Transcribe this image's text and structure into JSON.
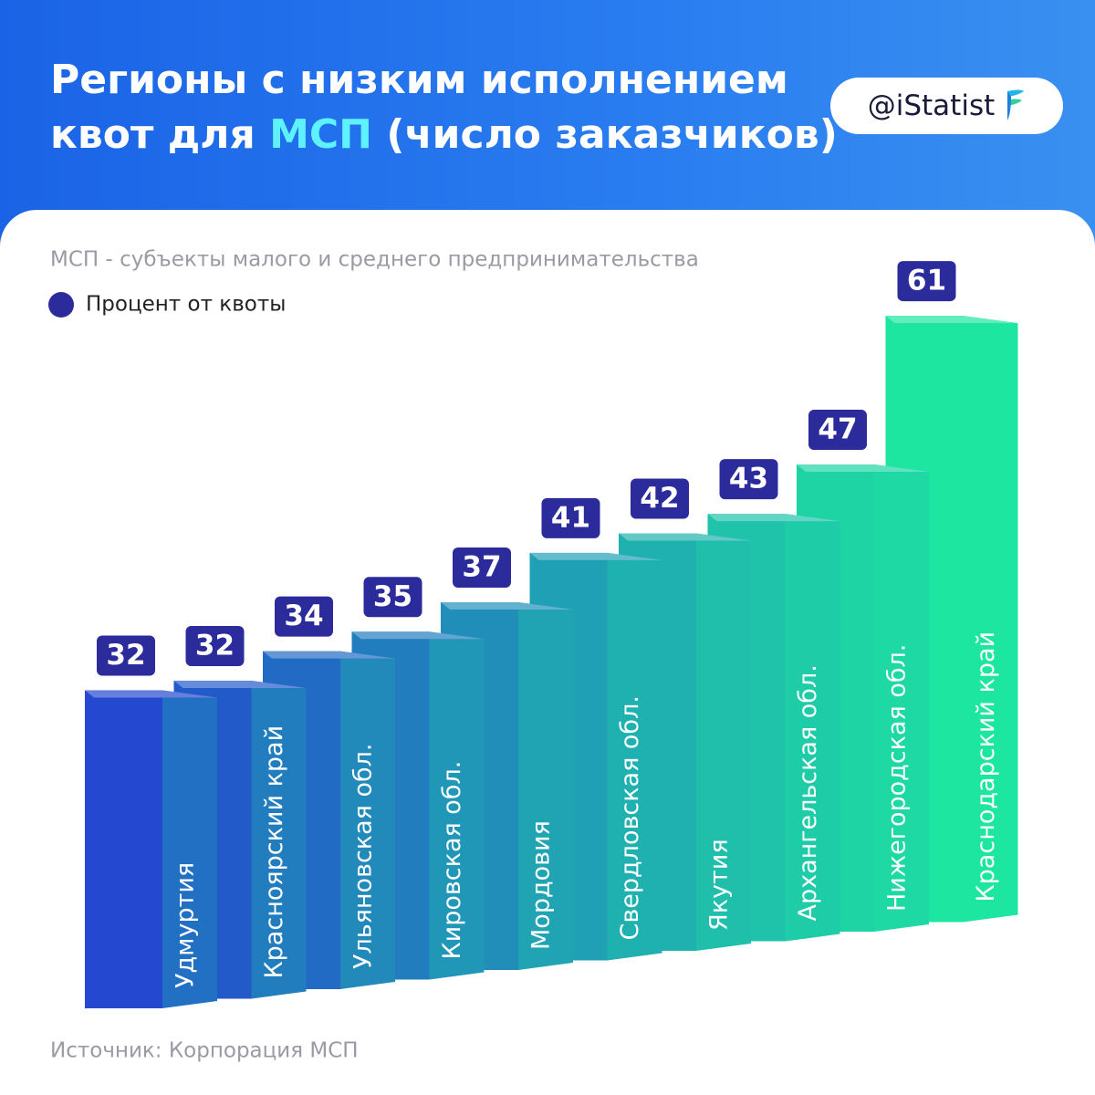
{
  "chart_data": {
    "type": "bar",
    "title": [
      "Регионы с низким исполнением",
      "квот для",
      "МСП",
      "(число заказчиков)"
    ],
    "subtitle": "МСП - субъекты малого и среднего предпринимательства",
    "brand": "@iStatist",
    "source": "Источник: Корпорация МСП",
    "series": [
      {
        "name": "Процент от квоты",
        "color": "#2b2b9c",
        "values": [
          32,
          32,
          34,
          35,
          37,
          41,
          42,
          43,
          47,
          61
        ]
      }
    ],
    "categories": [
      "Удмуртия",
      "Красноярский край",
      "Ульяновская обл.",
      "Кировская обл.",
      "Мордовия",
      "Свердловская обл.",
      "Якутия",
      "Архангельская обл.",
      "Нижегородская обл.",
      "Краснодарский край"
    ],
    "gradient": [
      "#2448cf",
      "#1de6a0"
    ],
    "ylim": [
      0,
      65
    ]
  }
}
